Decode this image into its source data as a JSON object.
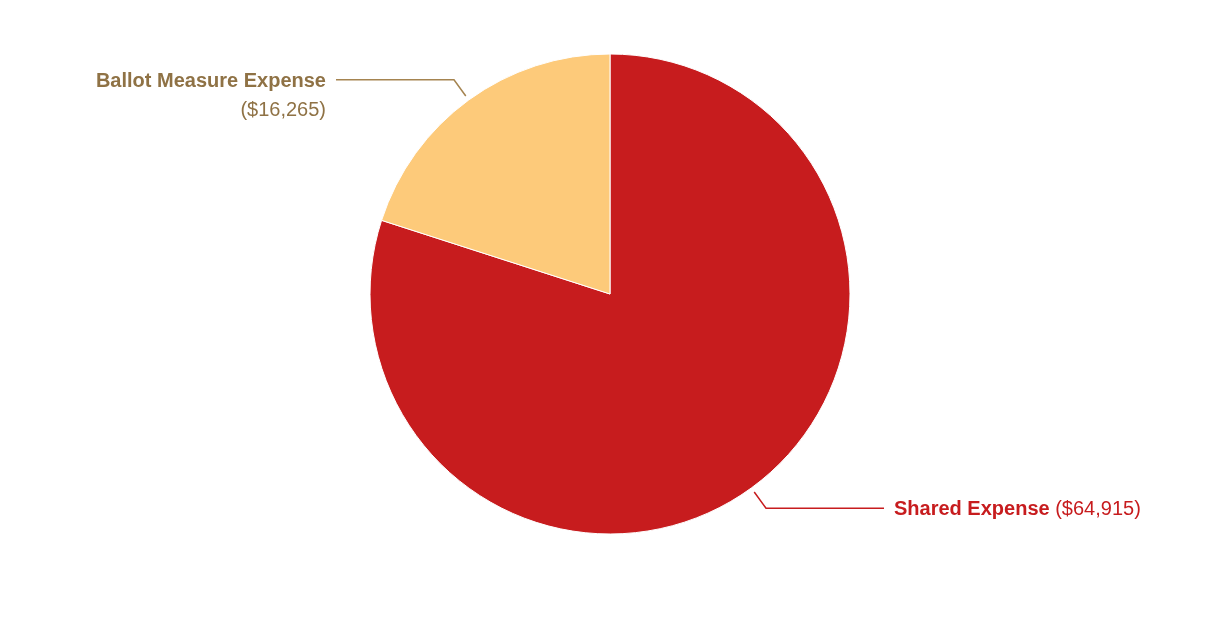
{
  "chart_data": {
    "type": "pie",
    "categories": [
      "Shared Expense",
      "Ballot Measure Expense"
    ],
    "values": [
      64915,
      16265
    ],
    "colors": [
      "#c71c1e",
      "#fdca7a"
    ],
    "value_labels": [
      "($64,915)",
      "($16,265)"
    ]
  }
}
